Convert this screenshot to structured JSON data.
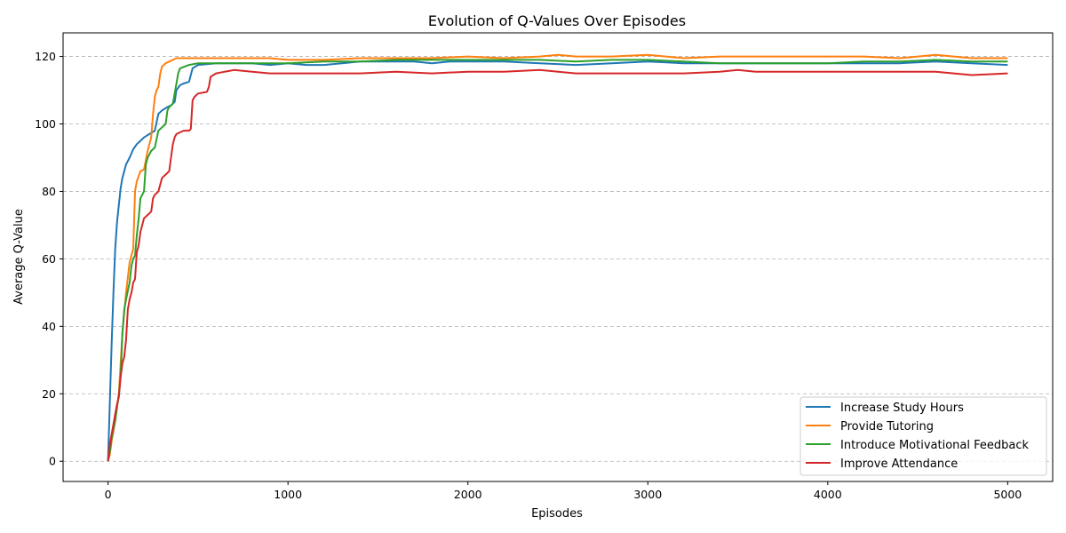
{
  "chart_data": {
    "type": "line",
    "title": "Evolution of Q-Values Over Episodes",
    "xlabel": "Episodes",
    "ylabel": "Average Q-Value",
    "xlim": [
      -250,
      5250
    ],
    "ylim": [
      -6,
      127
    ],
    "xticks": [
      0,
      1000,
      2000,
      3000,
      4000,
      5000
    ],
    "xtick_labels": [
      "0",
      "1000",
      "2000",
      "3000",
      "4000",
      "5000"
    ],
    "yticks": [
      0,
      20,
      40,
      60,
      80,
      100,
      120
    ],
    "ytick_labels": [
      "0",
      "20",
      "40",
      "60",
      "80",
      "100",
      "120"
    ],
    "grid": "y-dashed",
    "legend_position": "bottom-right",
    "series": [
      {
        "name": "Increase Study Hours",
        "color": "#1f77b4",
        "x": [
          0,
          10,
          20,
          30,
          40,
          50,
          60,
          70,
          80,
          90,
          100,
          120,
          140,
          160,
          180,
          200,
          230,
          260,
          280,
          300,
          330,
          350,
          360,
          370,
          380,
          400,
          420,
          450,
          470,
          500,
          600,
          700,
          800,
          900,
          1000,
          1100,
          1200,
          1300,
          1400,
          1500,
          1600,
          1700,
          1800,
          1900,
          2000,
          2200,
          2400,
          2600,
          2800,
          3000,
          3200,
          3400,
          3600,
          3800,
          4000,
          4200,
          4400,
          4600,
          4800,
          5000
        ],
        "y": [
          0,
          18,
          35,
          50,
          63,
          71,
          76,
          81,
          84,
          86,
          88,
          90,
          92.5,
          94,
          95,
          96,
          97,
          98,
          103,
          104,
          105,
          105.5,
          106,
          106.5,
          110,
          111.5,
          112,
          112.5,
          116.5,
          117.5,
          118,
          118,
          118,
          117.5,
          118,
          117.5,
          117.5,
          118,
          118.5,
          118.5,
          118.5,
          118.5,
          118,
          118.5,
          118.5,
          118.5,
          118,
          117.5,
          118,
          118.5,
          118,
          118,
          118,
          118,
          118,
          118,
          118,
          118.5,
          118,
          117.5
        ]
      },
      {
        "name": "Provide Tutoring",
        "color": "#ff7f0e",
        "x": [
          0,
          10,
          20,
          40,
          60,
          80,
          100,
          120,
          140,
          150,
          160,
          180,
          200,
          220,
          240,
          250,
          260,
          270,
          280,
          290,
          300,
          320,
          340,
          360,
          380,
          400,
          450,
          500,
          600,
          700,
          800,
          900,
          1000,
          1200,
          1400,
          1600,
          1800,
          2000,
          2200,
          2400,
          2500,
          2600,
          2800,
          3000,
          3200,
          3400,
          3600,
          3800,
          4000,
          4200,
          4400,
          4600,
          4800,
          5000
        ],
        "y": [
          0,
          2,
          6,
          12,
          20,
          38,
          50,
          59,
          63,
          80,
          83,
          86,
          86.5,
          92,
          96,
          103,
          108,
          110,
          111,
          115,
          117,
          118,
          118.5,
          119,
          119.5,
          119.5,
          119.5,
          119.5,
          119.5,
          119.5,
          119.5,
          119.5,
          119,
          119,
          119.5,
          119.5,
          119.5,
          120,
          119.5,
          120,
          120.5,
          120,
          120,
          120.5,
          119.5,
          120,
          120,
          120,
          120,
          120,
          119.5,
          120.5,
          119.5,
          119.5
        ]
      },
      {
        "name": "Introduce Motivational Feedback",
        "color": "#2ca02c",
        "x": [
          0,
          10,
          20,
          40,
          60,
          70,
          80,
          90,
          100,
          120,
          130,
          140,
          150,
          160,
          170,
          180,
          190,
          200,
          210,
          220,
          230,
          240,
          260,
          280,
          300,
          320,
          330,
          340,
          360,
          380,
          390,
          400,
          450,
          500,
          600,
          700,
          800,
          900,
          1000,
          1200,
          1400,
          1600,
          1800,
          2000,
          2200,
          2400,
          2600,
          2800,
          3000,
          3200,
          3400,
          3600,
          3800,
          4000,
          4200,
          4400,
          4600,
          4800,
          5000
        ],
        "y": [
          0,
          3,
          7,
          12,
          20,
          25,
          38,
          45,
          48,
          53,
          58,
          60,
          61,
          67,
          72,
          78,
          79,
          80,
          88,
          90,
          91,
          92,
          93,
          98,
          99,
          100,
          104,
          105,
          106,
          112,
          115,
          116.5,
          117.5,
          118,
          118,
          118,
          118,
          118,
          118,
          118.5,
          118.5,
          119,
          119,
          119,
          119,
          119,
          118.5,
          119,
          119,
          118.5,
          118,
          118,
          118,
          118,
          118.5,
          118.5,
          119,
          118.5,
          118.5
        ]
      },
      {
        "name": "Improve Attendance",
        "color": "#d62728",
        "x": [
          0,
          10,
          20,
          30,
          40,
          50,
          60,
          70,
          80,
          90,
          100,
          110,
          120,
          130,
          140,
          150,
          160,
          170,
          180,
          190,
          200,
          220,
          240,
          250,
          260,
          280,
          300,
          320,
          340,
          350,
          360,
          370,
          380,
          400,
          420,
          450,
          460,
          470,
          480,
          500,
          550,
          560,
          570,
          600,
          650,
          700,
          800,
          900,
          1000,
          1200,
          1400,
          1600,
          1800,
          2000,
          2200,
          2400,
          2600,
          2800,
          3000,
          3200,
          3400,
          3500,
          3600,
          3800,
          4000,
          4200,
          4400,
          4600,
          4700,
          4800,
          5000
        ],
        "y": [
          0,
          5,
          8,
          11,
          14,
          17,
          19,
          25,
          29,
          31,
          36,
          45,
          48,
          50,
          53,
          54,
          62,
          64,
          68,
          70,
          72,
          73,
          74,
          78,
          79,
          80,
          84,
          85,
          86,
          90,
          94,
          96,
          97,
          97.5,
          98,
          98,
          98.5,
          107,
          108,
          109,
          109.5,
          111,
          114,
          115,
          115.5,
          116,
          115.5,
          115,
          115,
          115,
          115,
          115.5,
          115,
          115.5,
          115.5,
          116,
          115,
          115,
          115,
          115,
          115.5,
          116,
          115.5,
          115.5,
          115.5,
          115.5,
          115.5,
          115.5,
          115,
          114.5,
          115
        ]
      }
    ]
  }
}
